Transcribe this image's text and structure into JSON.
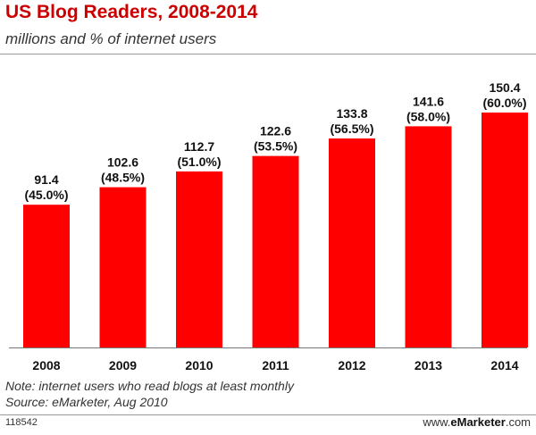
{
  "header": {
    "title": "US Blog Readers, 2008-2014",
    "subtitle": "millions and % of internet users"
  },
  "chart_data": {
    "type": "bar",
    "categories": [
      "2008",
      "2009",
      "2010",
      "2011",
      "2012",
      "2013",
      "2014"
    ],
    "values": [
      91.4,
      102.6,
      112.7,
      122.6,
      133.8,
      141.6,
      150.4
    ],
    "percent_labels": [
      "(45.0%)",
      "(48.5%)",
      "(51.0%)",
      "(53.5%)",
      "(56.5%)",
      "(58.0%)",
      "(60.0%)"
    ],
    "value_labels": [
      "91.4",
      "102.6",
      "112.7",
      "122.6",
      "133.8",
      "141.6",
      "150.4"
    ],
    "bar_color": "#ff0000",
    "grid": false,
    "legend": "none"
  },
  "footer": {
    "note": "Note: internet users who read blogs at least monthly",
    "source": "Source: eMarketer, Aug 2010",
    "chart_id": "118542",
    "brand_prefix": "www.",
    "brand_name": "eMarketer",
    "brand_suffix": ".com"
  }
}
